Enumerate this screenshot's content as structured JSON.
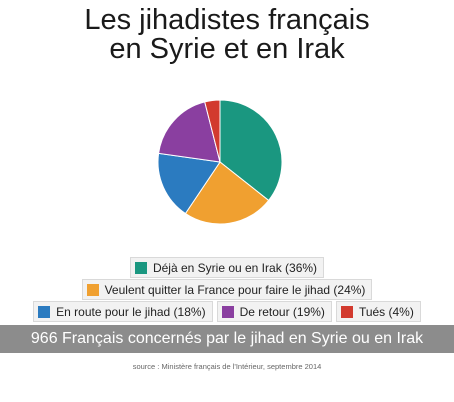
{
  "chart_data": {
    "type": "pie",
    "title": [
      "Les jihadistes français",
      "en Syrie et en Irak"
    ],
    "slices": [
      {
        "label": "Déjà en Syrie ou en Irak (36%)",
        "value": 36,
        "color": "#1a9780"
      },
      {
        "label": "Veulent quitter la France pour faire le jihad (24%)",
        "value": 24,
        "color": "#f0a030"
      },
      {
        "label": "En route pour le jihad (18%)",
        "value": 18,
        "color": "#2b7bc0"
      },
      {
        "label": "De retour (19%)",
        "value": 19,
        "color": "#8a3fa0"
      },
      {
        "label": "Tués (4%)",
        "value": 4,
        "color": "#d23a2e"
      }
    ],
    "legend_placement": "bottom"
  },
  "banner": "966 Français concernés par le jihad en Syrie ou en Irak",
  "source": "source : Ministère français de l'Intérieur, septembre 2014"
}
